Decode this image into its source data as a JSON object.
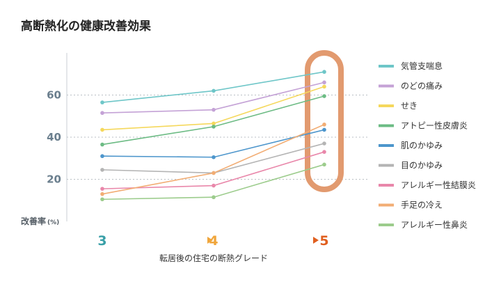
{
  "chart_data": {
    "type": "line",
    "title": "高断熱化の健康改善効果",
    "xlabel": "転居後の住宅の断熱グレード",
    "ylabel": "改善率",
    "ylabel_unit": "(%)",
    "categories": [
      "3",
      "4",
      "5"
    ],
    "category_colors": [
      "#3aa0a8",
      "#f0a63c",
      "#e05f1f"
    ],
    "ylim": [
      0,
      80
    ],
    "yticks": [
      20,
      40,
      60
    ],
    "grid": "dotted-horizontal",
    "legend_position": "right",
    "highlight_category": "5",
    "highlight_color": "#e29a6f",
    "series": [
      {
        "name": "気管支喘息",
        "color": "#6ec6c8",
        "values": [
          56.5,
          62,
          71
        ]
      },
      {
        "name": "のどの痛み",
        "color": "#c4a2d6",
        "values": [
          51.5,
          53,
          66
        ]
      },
      {
        "name": "せき",
        "color": "#f5d85c",
        "values": [
          43.5,
          46.5,
          64
        ]
      },
      {
        "name": "アトピー性皮膚炎",
        "color": "#6cbb84",
        "values": [
          36.5,
          45,
          59.5
        ]
      },
      {
        "name": "肌のかゆみ",
        "color": "#4d96cc",
        "values": [
          31,
          30.5,
          43.5
        ]
      },
      {
        "name": "目のかゆみ",
        "color": "#b4b4b4",
        "values": [
          24.5,
          23,
          37
        ]
      },
      {
        "name": "アレルギー性結膜炎",
        "color": "#e987aa",
        "values": [
          15.5,
          17,
          33
        ]
      },
      {
        "name": "手足の冷え",
        "color": "#f2ad74",
        "values": [
          13,
          23,
          46
        ]
      },
      {
        "name": "アレルギー性鼻炎",
        "color": "#9ccc8c",
        "values": [
          10.5,
          11.5,
          27
        ]
      }
    ]
  }
}
